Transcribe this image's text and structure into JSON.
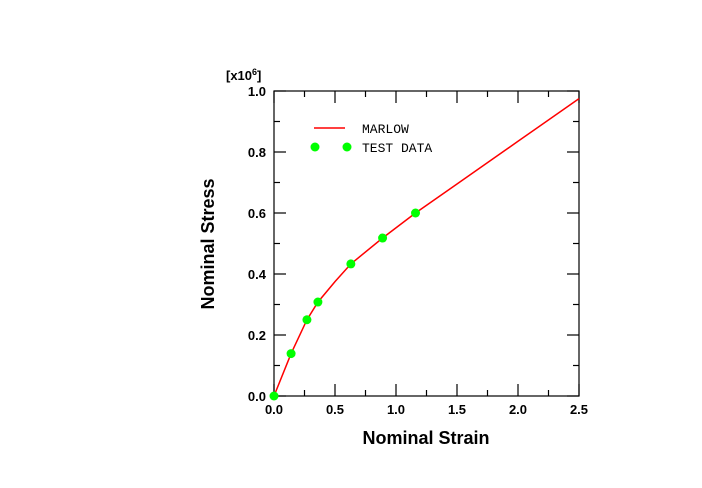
{
  "chart_data": {
    "type": "line",
    "title": "",
    "xlabel": "Nominal Strain",
    "ylabel": "Nominal Stress",
    "y_multiplier_label": "[x10",
    "y_multiplier_exp": "6",
    "y_multiplier_close": "]",
    "xlim": [
      0,
      2.5
    ],
    "ylim": [
      0,
      1.0
    ],
    "xticks": [
      "0.0",
      "0.5",
      "1.0",
      "1.5",
      "2.0",
      "2.5"
    ],
    "yticks": [
      "0.0",
      "0.2",
      "0.4",
      "0.6",
      "0.8",
      "1.0"
    ],
    "grid": false,
    "legend_position": "top-left",
    "series": [
      {
        "name": "MARLOW",
        "kind": "line",
        "color": "#ff0000",
        "x": [
          0,
          0.14,
          0.27,
          0.36,
          0.5,
          0.63,
          0.89,
          1.16,
          1.5,
          2.0,
          2.5
        ],
        "y": [
          0,
          0.139,
          0.25,
          0.308,
          0.375,
          0.433,
          0.518,
          0.6,
          0.695,
          0.835,
          0.975
        ]
      },
      {
        "name": "TEST DATA",
        "kind": "scatter",
        "color": "#00ff00",
        "x": [
          0,
          0.14,
          0.27,
          0.36,
          0.63,
          0.89,
          1.16
        ],
        "y": [
          0,
          0.139,
          0.25,
          0.308,
          0.433,
          0.518,
          0.6
        ]
      }
    ]
  }
}
